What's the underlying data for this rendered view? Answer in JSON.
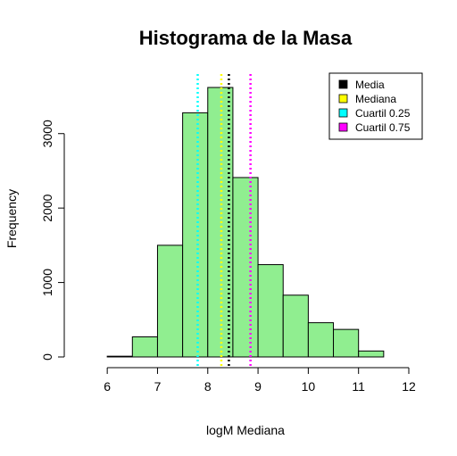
{
  "chart_data": {
    "type": "histogram",
    "title": "Histograma de la Masa",
    "xlabel": "logM Mediana",
    "ylabel": "Frequency",
    "bin_edges": [
      6.0,
      6.5,
      7.0,
      7.5,
      8.0,
      8.5,
      9.0,
      9.5,
      10.0,
      10.5,
      11.0,
      11.5
    ],
    "counts": [
      10,
      270,
      1500,
      3280,
      3620,
      2410,
      1240,
      830,
      460,
      370,
      80
    ],
    "xlim": [
      5.5,
      12
    ],
    "ylim": [
      0,
      3800
    ],
    "xticks": [
      "6",
      "7",
      "8",
      "9",
      "10",
      "11",
      "12"
    ],
    "yticks": [
      "0",
      "1000",
      "2000",
      "3000"
    ],
    "bar_color": "#90ee90",
    "reference_lines": [
      {
        "name": "Media",
        "x": 8.42,
        "color": "#000000"
      },
      {
        "name": "Mediana",
        "x": 8.27,
        "color": "#ffff00"
      },
      {
        "name": "Cuartil 0.25",
        "x": 7.8,
        "color": "#00ffff"
      },
      {
        "name": "Cuartil 0.75",
        "x": 8.85,
        "color": "#ff00ff"
      }
    ],
    "legend_position": "top-right"
  }
}
